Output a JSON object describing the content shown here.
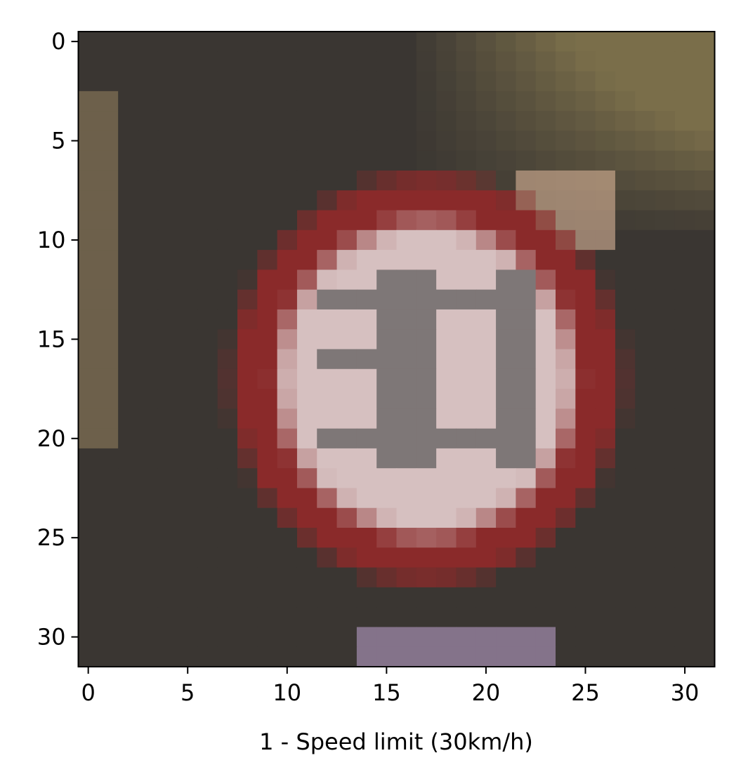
{
  "chart_data": {
    "type": "heatmap",
    "title": "",
    "xlabel": "1 - Speed limit (30km/h)",
    "ylabel": "",
    "grid": false,
    "xlim": [
      -0.5,
      31.5
    ],
    "ylim": [
      31.5,
      -0.5
    ],
    "xticks": [
      0,
      5,
      10,
      15,
      20,
      25,
      30
    ],
    "yticks": [
      0,
      5,
      10,
      15,
      20,
      25,
      30
    ],
    "image_size": [
      32,
      32
    ],
    "image_description_colors": {
      "ring": "#8a2a2a",
      "inner_light": "#d6c0c0",
      "digits": "#6e6a6a",
      "background_dark": "#3a3632",
      "background_olive": "#7a6e4a"
    }
  }
}
